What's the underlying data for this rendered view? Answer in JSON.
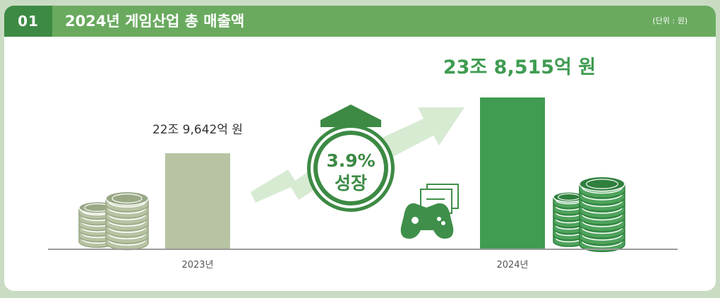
{
  "header": {
    "number": "01",
    "title": "2024년 게임산업 총 매출액",
    "unit": "(단위 : 원)"
  },
  "growth": {
    "percent": "3.9%",
    "label": "성장"
  },
  "colors": {
    "header_bg": "#6aaa5f",
    "number_bg": "#3c8a44",
    "bar_2023": "#b7c3a2",
    "bar_2024": "#3f9c51",
    "arrow": "#d7ead2",
    "badge": "#3c8a44"
  },
  "chart_data": {
    "type": "bar",
    "title": "2024년 게임산업 총 매출액",
    "unit": "(단위 : 원)",
    "categories": [
      "2023년",
      "2024년"
    ],
    "values": [
      22.9642,
      23.8515
    ],
    "value_labels": [
      "22조 9,642억 원",
      "23조 8,515억 원"
    ],
    "growth_label": "3.9%"
  },
  "icons": {
    "coins_left": "coin-stack-icon",
    "coins_right": "coin-stack-icon",
    "gamepad": "gamepad-icon",
    "arrow": "growth-arrow-icon"
  }
}
